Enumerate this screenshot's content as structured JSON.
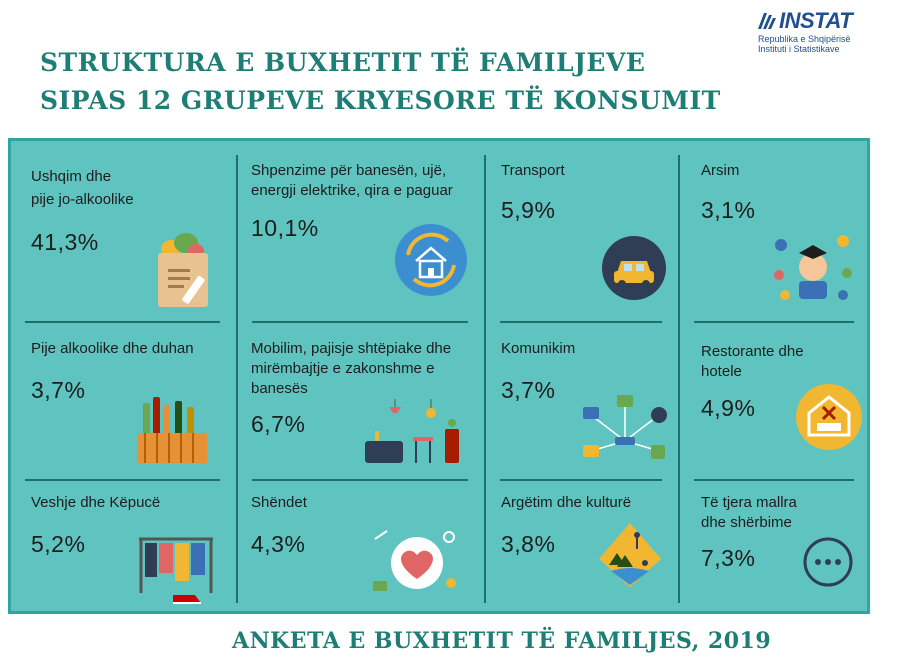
{
  "header": {
    "title_line1": "STRUKTURA E BUXHETIT TË FAMILJEVE",
    "title_line2": "SIPAS 12 GRUPEVE KRYESORE TË KONSUMIT"
  },
  "logo": {
    "name": "INSTAT",
    "line1": "Republika e Shqipërisë",
    "line2": "Instituti i Statistikave",
    "brand_color": "#1f4f8f"
  },
  "colors": {
    "accent": "#1e7d74",
    "panel": "#5fc4c0",
    "divider": "#1f6e6a"
  },
  "categories": [
    {
      "label_line1": "Ushqim dhe",
      "label_line2": "pije jo-alkoolike",
      "value": "41,3%",
      "icon": "grocery-bag-icon"
    },
    {
      "label_line1": "Shpenzime për banesën, ujë,",
      "label_line2": "energji elektrike, qira e paguar",
      "value": "10,1%",
      "icon": "house-icon"
    },
    {
      "label_line1": "Transport",
      "label_line2": "",
      "value": "5,9%",
      "icon": "car-icon"
    },
    {
      "label_line1": "Arsim",
      "label_line2": "",
      "value": "3,1%",
      "icon": "graduate-icon"
    },
    {
      "label_line1": "Pije alkoolike dhe duhan",
      "label_line2": "",
      "value": "3,7%",
      "icon": "bottles-icon"
    },
    {
      "label_line1": "Mobilim, pajisje shtëpiake dhe",
      "label_line2": "mirëmbajtje e zakonshme e",
      "label_line3": "banesës",
      "value": "6,7%",
      "icon": "furniture-icon"
    },
    {
      "label_line1": "Komunikim",
      "label_line2": "",
      "value": "3,7%",
      "icon": "network-icon"
    },
    {
      "label_line1": "Restorante dhe",
      "label_line2": "hotele",
      "value": "4,9%",
      "icon": "hotel-icon"
    },
    {
      "label_line1": "Veshje dhe Këpucë",
      "label_line2": "",
      "value": "5,2%",
      "icon": "clothing-rack-icon"
    },
    {
      "label_line1": "Shëndet",
      "label_line2": "",
      "value": "4,3%",
      "icon": "health-heart-icon"
    },
    {
      "label_line1": "Argëtim dhe kulturë",
      "label_line2": "",
      "value": "3,8%",
      "icon": "recreation-icon"
    },
    {
      "label_line1": "Të tjera mallra",
      "label_line2": "dhe shërbime",
      "value": "7,3%",
      "icon": "more-icon"
    }
  ],
  "footer": {
    "text": "ANKETA E BUXHETIT TË FAMILJES, 2019"
  }
}
